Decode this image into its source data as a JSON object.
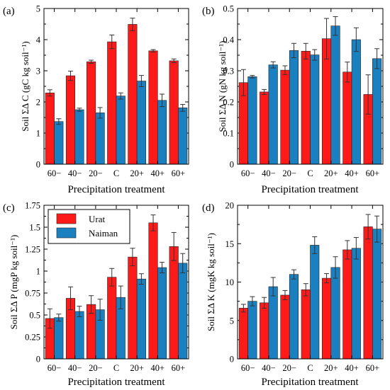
{
  "colors": {
    "urat": "#ff1a1a",
    "naiman": "#1a80c0"
  },
  "legend": {
    "urat": "Urat",
    "naiman": "Naiman",
    "position": "top-left of panel (c)"
  },
  "chart_data": [
    {
      "panel": "(a)",
      "type": "bar",
      "categories": [
        "60−",
        "40−",
        "20−",
        "C",
        "20+",
        "40+",
        "60+"
      ],
      "ylabel": "Soil ΣΔ C (gC kg soil⁻¹)",
      "xlabel": "Precipitation treatment",
      "ylim": [
        0,
        5
      ],
      "yticks": [
        "0",
        "1",
        "2",
        "3",
        "4",
        "5"
      ],
      "ytick_values": [
        0,
        1,
        2,
        3,
        4,
        5
      ],
      "series": [
        {
          "name": "Urat",
          "values": [
            2.29,
            2.84,
            3.29,
            3.93,
            4.49,
            3.64,
            3.32
          ],
          "errors": [
            0.1,
            0.15,
            0.05,
            0.22,
            0.2,
            0.04,
            0.06
          ]
        },
        {
          "name": "Naiman",
          "values": [
            1.37,
            1.75,
            1.65,
            2.19,
            2.67,
            2.05,
            1.81
          ],
          "errors": [
            0.09,
            0.05,
            0.17,
            0.1,
            0.18,
            0.2,
            0.11
          ]
        }
      ]
    },
    {
      "panel": "(b)",
      "type": "bar",
      "categories": [
        "60−",
        "40−",
        "20−",
        "C",
        "20+",
        "40+",
        "60+"
      ],
      "ylabel": "Soil ΣΔ N (gN kg soil⁻¹)",
      "xlabel": "Precipitation treatment",
      "ylim": [
        0,
        0.5
      ],
      "yticks": [
        "0",
        "0.1",
        "0.2",
        "0.3",
        "0.4",
        "0.5"
      ],
      "ytick_values": [
        0,
        0.1,
        0.2,
        0.3,
        0.4,
        0.5
      ],
      "series": [
        {
          "name": "Urat",
          "values": [
            0.262,
            0.232,
            0.302,
            0.363,
            0.403,
            0.296,
            0.224
          ],
          "errors": [
            0.042,
            0.008,
            0.014,
            0.025,
            0.065,
            0.032,
            0.063
          ]
        },
        {
          "name": "Naiman",
          "values": [
            0.281,
            0.319,
            0.365,
            0.351,
            0.444,
            0.4,
            0.339
          ],
          "errors": [
            0.004,
            0.01,
            0.023,
            0.017,
            0.03,
            0.038,
            0.032
          ]
        }
      ]
    },
    {
      "panel": "(c)",
      "type": "bar",
      "categories": [
        "60−",
        "40−",
        "20−",
        "C",
        "20+",
        "40+",
        "60+"
      ],
      "ylabel": "Soil ΣΔ P (mgP kg soil⁻¹)",
      "xlabel": "Precipitation treatment",
      "ylim": [
        0,
        1.75
      ],
      "yticks": [
        "0",
        "0.25",
        "0.5",
        "0.75",
        "1",
        "1.25",
        "1.5",
        "1.75"
      ],
      "ytick_values": [
        0,
        0.25,
        0.5,
        0.75,
        1,
        1.25,
        1.5,
        1.75
      ],
      "series": [
        {
          "name": "Urat",
          "values": [
            0.46,
            0.69,
            0.62,
            0.93,
            1.16,
            1.55,
            1.28
          ],
          "errors": [
            0.11,
            0.13,
            0.1,
            0.1,
            0.1,
            0.09,
            0.16
          ]
        },
        {
          "name": "Naiman",
          "values": [
            0.47,
            0.54,
            0.56,
            0.7,
            0.91,
            1.04,
            1.09
          ],
          "errors": [
            0.04,
            0.06,
            0.12,
            0.13,
            0.06,
            0.06,
            0.11
          ]
        }
      ]
    },
    {
      "panel": "(d)",
      "type": "bar",
      "categories": [
        "60−",
        "40−",
        "20−",
        "C",
        "20+",
        "40+",
        "60+"
      ],
      "ylabel": "Soil ΣΔ K (mgK kg soil⁻¹)",
      "xlabel": "Precipitation treatment",
      "ylim": [
        0,
        20
      ],
      "yticks": [
        "0",
        "5",
        "10",
        "15",
        "20"
      ],
      "ytick_values": [
        0,
        5,
        10,
        15,
        20
      ],
      "series": [
        {
          "name": "Urat",
          "values": [
            6.6,
            7.3,
            8.3,
            9.0,
            10.5,
            14.2,
            17.2
          ],
          "errors": [
            0.5,
            0.7,
            0.6,
            0.8,
            0.6,
            1.2,
            1.6
          ]
        },
        {
          "name": "Naiman",
          "values": [
            7.5,
            9.4,
            11.0,
            14.8,
            11.9,
            14.4,
            16.9
          ],
          "errors": [
            0.6,
            1.2,
            0.6,
            1.1,
            1.4,
            1.4,
            1.7
          ]
        }
      ]
    }
  ]
}
